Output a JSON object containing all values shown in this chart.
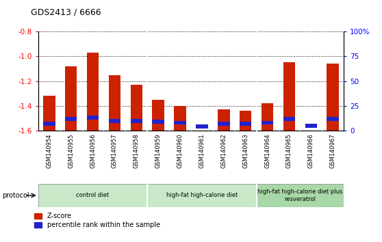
{
  "title": "GDS2413 / 6666",
  "samples": [
    "GSM140954",
    "GSM140955",
    "GSM140956",
    "GSM140957",
    "GSM140958",
    "GSM140959",
    "GSM140960",
    "GSM140961",
    "GSM140962",
    "GSM140963",
    "GSM140964",
    "GSM140965",
    "GSM140966",
    "GSM140967"
  ],
  "zscore": [
    -1.32,
    -1.08,
    -0.97,
    -1.15,
    -1.23,
    -1.35,
    -1.4,
    -1.6,
    -1.43,
    -1.44,
    -1.38,
    -1.05,
    -1.6,
    -1.06
  ],
  "percentile": [
    7,
    12,
    13,
    10,
    10,
    9,
    8,
    4,
    7,
    7,
    8,
    12,
    5,
    12
  ],
  "ylim_left": [
    -1.6,
    -0.8
  ],
  "ylim_right": [
    0,
    100
  ],
  "yticks_left": [
    -1.6,
    -1.4,
    -1.2,
    -1.0,
    -0.8
  ],
  "yticks_right": [
    0,
    25,
    50,
    75,
    100
  ],
  "ytick_labels_right": [
    "0",
    "25",
    "50",
    "75",
    "100%"
  ],
  "bar_color_red": "#cc2200",
  "bar_color_blue": "#2222cc",
  "groups": [
    {
      "label": "control diet",
      "start": 0,
      "end": 4,
      "color": "#c8e8c8"
    },
    {
      "label": "high-fat high-calorie diet",
      "start": 5,
      "end": 9,
      "color": "#c8e8c8"
    },
    {
      "label": "high-fat high-calorie diet plus\nresveratrol",
      "start": 10,
      "end": 13,
      "color": "#a8d8a8"
    }
  ],
  "legend_zscore": "Z-score",
  "legend_percentile": "percentile rank within the sample",
  "separation_lines": [
    4.5,
    9.5
  ],
  "bar_width": 0.55
}
